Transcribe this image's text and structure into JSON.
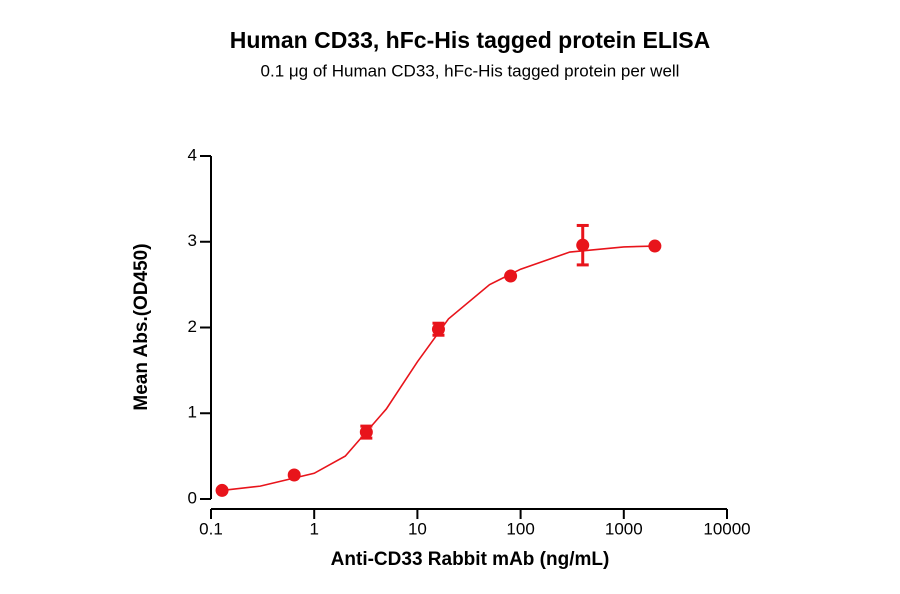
{
  "chart_data": {
    "type": "scatter",
    "title": "Human CD33, hFc-His tagged protein ELISA",
    "subtitle": "0.1 μg of Human CD33, hFc-His tagged protein per well",
    "x_label": "Anti-CD33 Rabbit mAb (ng/mL)",
    "y_label": "Mean Abs.(OD450)",
    "xscale": "log",
    "xlim": [
      0.1,
      10000
    ],
    "xticks": [
      0.1,
      1,
      10,
      100,
      1000,
      10000
    ],
    "ylim": [
      0,
      4
    ],
    "yticks": [
      0,
      1,
      2,
      3,
      4
    ],
    "series": [
      {
        "color": "#e8141b",
        "x": [
          0.128,
          0.64,
          3.2,
          16,
          80,
          400,
          2000
        ],
        "values": [
          0.1,
          0.28,
          0.78,
          1.98,
          2.6,
          2.96,
          2.95
        ],
        "errors": [
          0,
          0,
          0.07,
          0.07,
          0,
          0.23,
          0
        ]
      }
    ],
    "curve": {
      "color": "#e8141b",
      "x": [
        0.128,
        0.3,
        1,
        2,
        5,
        10,
        20,
        50,
        100,
        300,
        1000,
        2000
      ],
      "values": [
        0.1,
        0.15,
        0.3,
        0.5,
        1.05,
        1.6,
        2.1,
        2.5,
        2.68,
        2.88,
        2.94,
        2.95
      ]
    }
  }
}
